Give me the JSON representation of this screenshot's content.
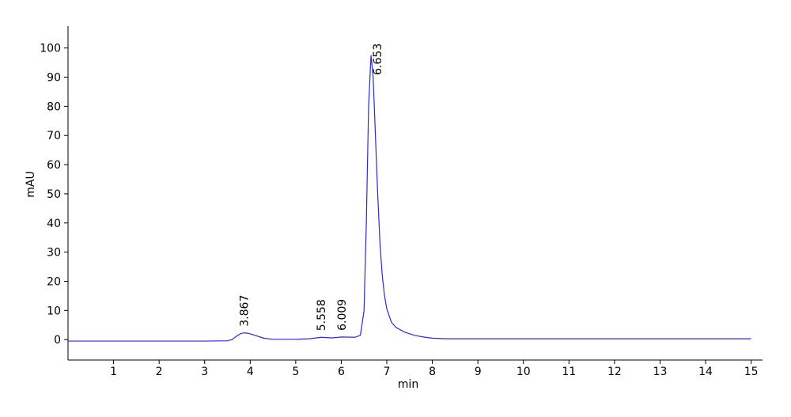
{
  "chart_data": {
    "type": "line",
    "x_label": "min",
    "y_label": "mAU",
    "color": "#2a2ad8",
    "x": [
      0,
      1,
      2,
      3,
      3.5,
      3.6,
      3.7,
      3.8,
      3.867,
      3.95,
      4.1,
      4.3,
      4.5,
      5.0,
      5.3,
      5.558,
      5.8,
      6.009,
      6.3,
      6.42,
      6.5,
      6.55,
      6.6,
      6.653,
      6.7,
      6.75,
      6.8,
      6.85,
      6.9,
      6.95,
      7.0,
      7.1,
      7.2,
      7.4,
      7.6,
      7.8,
      8.0,
      8.3,
      9,
      12,
      15
    ],
    "values": [
      -0.5,
      -0.5,
      -0.5,
      -0.5,
      -0.4,
      0,
      1.2,
      2.1,
      2.3,
      2.2,
      1.5,
      0.5,
      0.1,
      0.1,
      0.3,
      0.8,
      0.6,
      0.9,
      0.8,
      1.5,
      10,
      40,
      80,
      97.5,
      90,
      70,
      50,
      33,
      22,
      15,
      10.5,
      6,
      4.2,
      2.5,
      1.5,
      0.9,
      0.5,
      0.3,
      0.3,
      0.3,
      0.3
    ],
    "annotations": [
      {
        "label": "3.867",
        "x": 3.867,
        "y": 2.3
      },
      {
        "label": "5.558",
        "x": 5.558,
        "y": 0.8
      },
      {
        "label": "6.009",
        "x": 6.009,
        "y": 0.9
      },
      {
        "label": "6.653",
        "x": 6.653,
        "y": 97.5
      }
    ],
    "xlim": [
      0,
      15.25
    ],
    "ylim": [
      -7,
      107.5
    ],
    "xticks": [
      1,
      2,
      3,
      4,
      5,
      6,
      7,
      8,
      9,
      10,
      11,
      12,
      13,
      14,
      15
    ],
    "yticks": [
      0,
      10,
      20,
      30,
      40,
      50,
      60,
      70,
      80,
      90,
      100
    ]
  }
}
